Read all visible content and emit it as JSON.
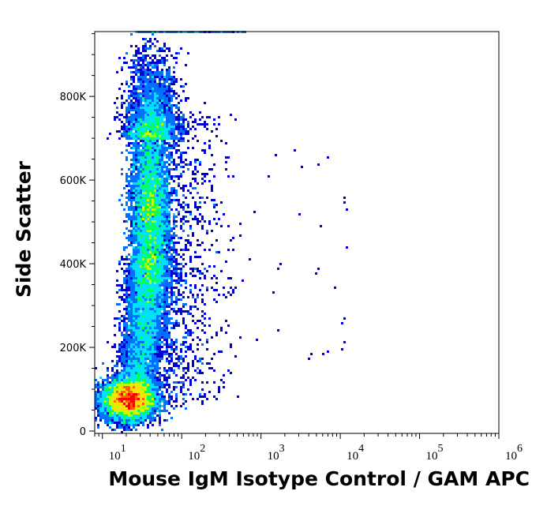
{
  "chart_data": {
    "type": "scatter",
    "style": "flow cytometry density dot plot",
    "xlabel": "Mouse IgM Isotype Control / GAM APC",
    "ylabel": "Side Scatter",
    "x_scale": "log",
    "xlim": [
      8,
      1000000
    ],
    "ylim": [
      0,
      955000
    ],
    "x_ticks": [
      {
        "value": 10,
        "base": "10",
        "exp": "1"
      },
      {
        "value": 100,
        "base": "10",
        "exp": "2"
      },
      {
        "value": 1000,
        "base": "10",
        "exp": "3"
      },
      {
        "value": 10000,
        "base": "10",
        "exp": "4"
      },
      {
        "value": 100000,
        "base": "10",
        "exp": "5"
      },
      {
        "value": 1000000,
        "base": "10",
        "exp": "6"
      }
    ],
    "y_ticks": [
      {
        "value": 0,
        "label": "0"
      },
      {
        "value": 200000,
        "label": "200K"
      },
      {
        "value": 400000,
        "label": "400K"
      },
      {
        "value": 600000,
        "label": "600K"
      },
      {
        "value": 800000,
        "label": "800K"
      }
    ],
    "grid": false,
    "colormap": [
      "#0000d0",
      "#0070ff",
      "#00e0ff",
      "#00ff60",
      "#c0ff00",
      "#ffe000",
      "#ff6000",
      "#ff0000"
    ],
    "populations": [
      {
        "x_center": 22,
        "y_center": 75000,
        "density": "high"
      },
      {
        "x_center": 40,
        "y_center": 520000,
        "density": "medium"
      },
      {
        "x_center": 45,
        "y_center": 250000,
        "density": "low"
      }
    ]
  }
}
